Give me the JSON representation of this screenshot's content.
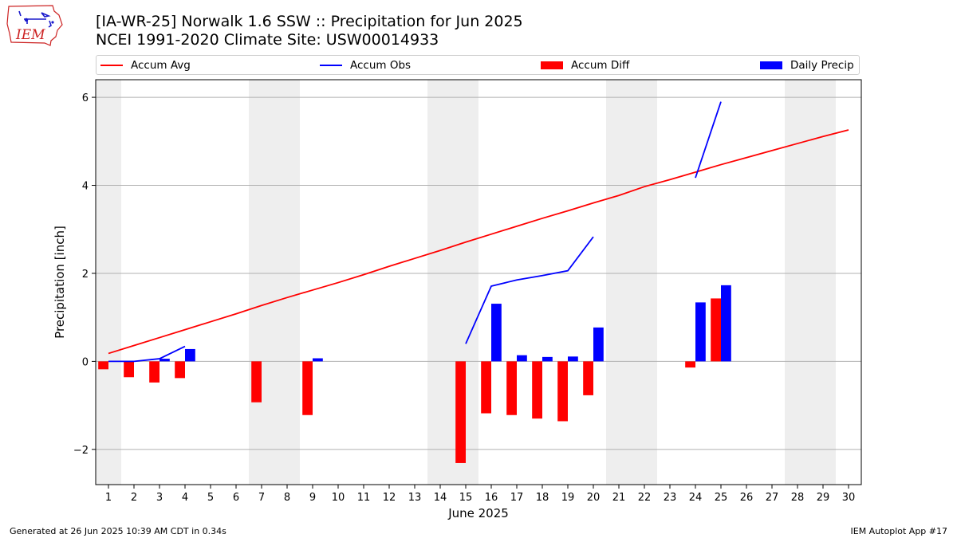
{
  "logo": {
    "text": "IEM",
    "color": "#cc2222"
  },
  "header": {
    "title_line1": "[IA-WR-25] Norwalk 1.6 SSW :: Precipitation for Jun 2025",
    "title_line2": "NCEI 1991-2020 Climate Site: USW00014933"
  },
  "footer": {
    "generated": "Generated at 26 Jun 2025 10:39 AM CDT in 0.34s",
    "app": "IEM Autoplot App #17"
  },
  "chart_data": {
    "type": "bar",
    "xlabel": "June 2025",
    "ylabel": "Precipitation [inch]",
    "xlim": [
      0.5,
      30.5
    ],
    "ylim": [
      -2.8,
      6.4
    ],
    "yticks": [
      -2,
      0,
      2,
      4,
      6
    ],
    "xticks": [
      1,
      2,
      3,
      4,
      5,
      6,
      7,
      8,
      9,
      10,
      11,
      12,
      13,
      14,
      15,
      16,
      17,
      18,
      19,
      20,
      21,
      22,
      23,
      24,
      25,
      26,
      27,
      28,
      29,
      30
    ],
    "grid": "horizontal",
    "legend_position": "top",
    "weekend_shading": [
      [
        0.5,
        1.5
      ],
      [
        6.5,
        8.5
      ],
      [
        13.5,
        15.5
      ],
      [
        20.5,
        22.5
      ],
      [
        27.5,
        29.5
      ]
    ],
    "weekend_color": "#eeeeee",
    "series": [
      {
        "name": "Accum Avg",
        "kind": "line",
        "color": "#ff0000",
        "points": [
          [
            1,
            0.18
          ],
          [
            2,
            0.36
          ],
          [
            3,
            0.54
          ],
          [
            4,
            0.72
          ],
          [
            5,
            0.9
          ],
          [
            6,
            1.08
          ],
          [
            7,
            1.27
          ],
          [
            8,
            1.45
          ],
          [
            9,
            1.62
          ],
          [
            10,
            1.79
          ],
          [
            11,
            1.97
          ],
          [
            12,
            2.16
          ],
          [
            13,
            2.34
          ],
          [
            14,
            2.52
          ],
          [
            15,
            2.71
          ],
          [
            16,
            2.89
          ],
          [
            17,
            3.07
          ],
          [
            18,
            3.25
          ],
          [
            19,
            3.42
          ],
          [
            20,
            3.6
          ],
          [
            21,
            3.77
          ],
          [
            22,
            3.97
          ],
          [
            23,
            4.13
          ],
          [
            24,
            4.3
          ],
          [
            25,
            4.47
          ],
          [
            26,
            4.63
          ],
          [
            27,
            4.79
          ],
          [
            28,
            4.95
          ],
          [
            29,
            5.11
          ],
          [
            30,
            5.26
          ]
        ]
      },
      {
        "name": "Accum Obs",
        "kind": "line",
        "color": "#0000ff",
        "segments": [
          [
            [
              1,
              0.0
            ],
            [
              2,
              0.0
            ],
            [
              3,
              0.06
            ],
            [
              4,
              0.34
            ]
          ],
          [
            [
              15,
              0.4
            ],
            [
              16,
              1.71
            ],
            [
              17,
              1.85
            ],
            [
              18,
              1.95
            ],
            [
              19,
              2.06
            ],
            [
              20,
              2.83
            ]
          ],
          [
            [
              24,
              4.17
            ],
            [
              25,
              5.9
            ]
          ]
        ]
      },
      {
        "name": "Accum Diff",
        "kind": "bar",
        "color": "#ff0000",
        "offset": -0.2,
        "points": [
          [
            1,
            -0.18
          ],
          [
            2,
            -0.36
          ],
          [
            3,
            -0.48
          ],
          [
            4,
            -0.38
          ],
          [
            7,
            -0.93
          ],
          [
            9,
            -1.22
          ],
          [
            15,
            -2.31
          ],
          [
            16,
            -1.18
          ],
          [
            17,
            -1.22
          ],
          [
            18,
            -1.3
          ],
          [
            19,
            -1.36
          ],
          [
            20,
            -0.77
          ],
          [
            24,
            -0.14
          ],
          [
            25,
            1.43
          ]
        ]
      },
      {
        "name": "Daily Precip",
        "kind": "bar",
        "color": "#0000ff",
        "offset": 0.2,
        "points": [
          [
            3,
            0.06
          ],
          [
            4,
            0.28
          ],
          [
            9,
            0.07
          ],
          [
            16,
            1.31
          ],
          [
            17,
            0.14
          ],
          [
            18,
            0.1
          ],
          [
            19,
            0.11
          ],
          [
            20,
            0.77
          ],
          [
            24,
            1.34
          ],
          [
            25,
            1.73
          ]
        ]
      }
    ]
  }
}
